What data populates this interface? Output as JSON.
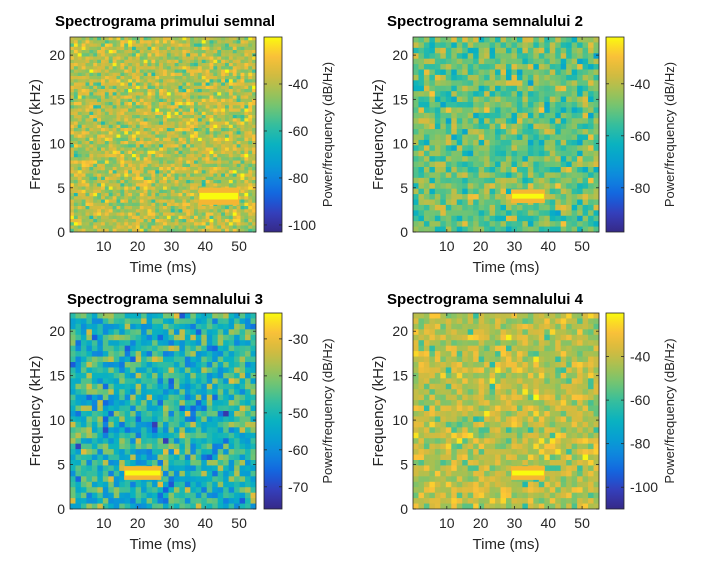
{
  "chart_data": [
    {
      "type": "heatmap",
      "title": "Spectrograma primului semnal",
      "xlabel": "Time (ms)",
      "ylabel": "Frequency (kHz)",
      "xticks": [
        10,
        20,
        30,
        40,
        50
      ],
      "yticks": [
        0,
        5,
        10,
        15,
        20
      ],
      "xlim": [
        0,
        55
      ],
      "ylim": [
        0,
        22.05
      ],
      "colorbar_label": "Power/frequency (dB/Hz)",
      "colorbar_ticks": [
        -40,
        -60,
        -80,
        -100
      ],
      "clim": [
        -103,
        -20
      ],
      "noise_mean_db": -40,
      "tone": {
        "t_start": 38,
        "t_end": 50,
        "f_low": 3.3,
        "f_high": 4.8,
        "level_db": -22
      },
      "colors": {
        "tone_edge": "#f5b632"
      }
    },
    {
      "type": "heatmap",
      "title": "Spectrograma semnalului 2",
      "xlabel": "Time (ms)",
      "ylabel": "Frequency (kHz)",
      "xticks": [
        10,
        20,
        30,
        40,
        50
      ],
      "yticks": [
        0,
        5,
        10,
        15,
        20
      ],
      "xlim": [
        0,
        55
      ],
      "ylim": [
        0,
        22.05
      ],
      "colorbar_label": "Power/frequency (dB/Hz)",
      "colorbar_ticks": [
        -40,
        -60,
        -80
      ],
      "clim": [
        -97,
        -22
      ],
      "noise_mean_db": -50,
      "tone": {
        "t_start": 29,
        "t_end": 39,
        "f_low": 3.5,
        "f_high": 4.6,
        "level_db": -23
      },
      "colors": {
        "tone_edge": "#f5b632"
      }
    },
    {
      "type": "heatmap",
      "title": "Spectrograma semnalului 3",
      "xlabel": "Time (ms)",
      "ylabel": "Frequency (kHz)",
      "xticks": [
        10,
        20,
        30,
        40,
        50
      ],
      "yticks": [
        0,
        5,
        10,
        15,
        20
      ],
      "xlim": [
        0,
        55
      ],
      "ylim": [
        0,
        22.05
      ],
      "colorbar_label": "Power/frequency (dB/Hz)",
      "colorbar_ticks": [
        -30,
        -40,
        -50,
        -60,
        -70
      ],
      "clim": [
        -76,
        -23
      ],
      "noise_mean_db": -50,
      "tone": {
        "t_start": 16,
        "t_end": 27,
        "f_low": 3.5,
        "f_high": 4.6,
        "level_db": -24
      },
      "colors": {
        "tone_edge": "#f5b632"
      }
    },
    {
      "type": "heatmap",
      "title": "Spectrograma semnalului 4",
      "xlabel": "Time (ms)",
      "ylabel": "Frequency (kHz)",
      "xticks": [
        10,
        20,
        30,
        40,
        50
      ],
      "yticks": [
        0,
        5,
        10,
        15,
        20
      ],
      "xlim": [
        0,
        55
      ],
      "ylim": [
        0,
        22.05
      ],
      "colorbar_label": "Power/frequency (dB/Hz)",
      "colorbar_ticks": [
        -40,
        -60,
        -80,
        -100
      ],
      "clim": [
        -110,
        -20
      ],
      "noise_mean_db": -42,
      "tone": {
        "t_start": 29,
        "t_end": 39,
        "f_low": 3.5,
        "f_high": 4.6,
        "level_db": -22
      },
      "colors": {
        "tone_edge": "#f5b632"
      }
    }
  ]
}
